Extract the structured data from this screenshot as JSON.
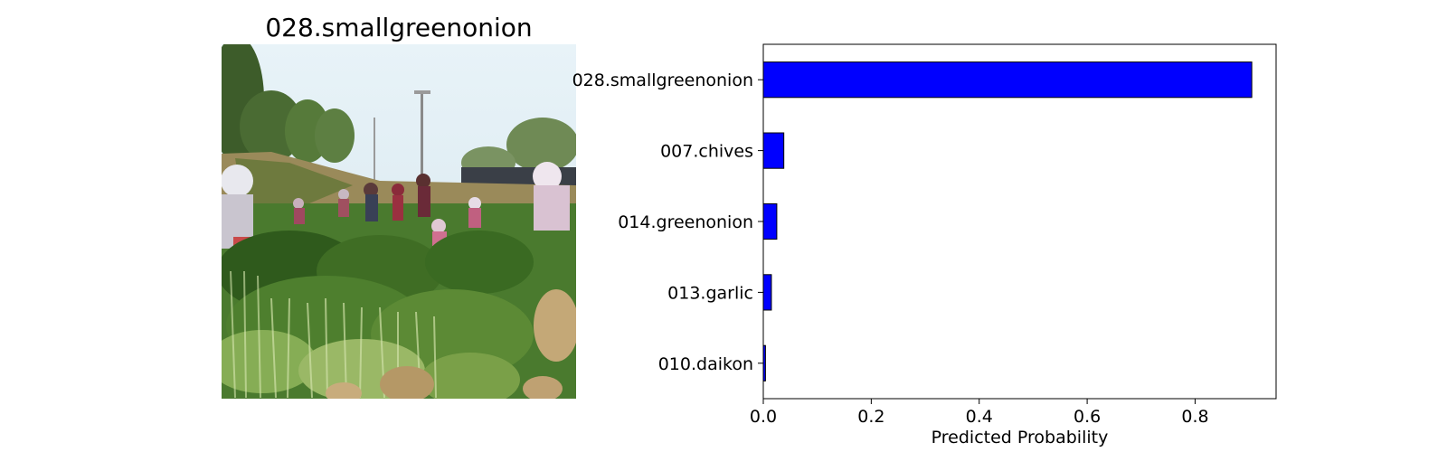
{
  "image_panel": {
    "title": "028.smallgreenonion",
    "colors": {
      "sky": "#dfeef6",
      "grass_dark": "#2f5a1c",
      "grass_mid": "#4e7f2e",
      "grass_light": "#86ad55",
      "soil": "#a08a5e",
      "straw": "#c4a877"
    }
  },
  "chart_data": {
    "type": "bar",
    "orientation": "horizontal",
    "categories": [
      "028.smallgreenonion",
      "007.chives",
      "014.greenonion",
      "013.garlic",
      "010.daikon"
    ],
    "values": [
      0.905,
      0.038,
      0.025,
      0.015,
      0.004
    ],
    "xlabel": "Predicted Probability",
    "ylabel": "",
    "xlim": [
      0,
      0.95
    ],
    "xticks": [
      "0.0",
      "0.2",
      "0.4",
      "0.6",
      "0.8"
    ],
    "tick_values": [
      0,
      0.2,
      0.4,
      0.6,
      0.8
    ],
    "grid": false,
    "bar_color": "#0000ff",
    "edge_color": "#000000"
  }
}
